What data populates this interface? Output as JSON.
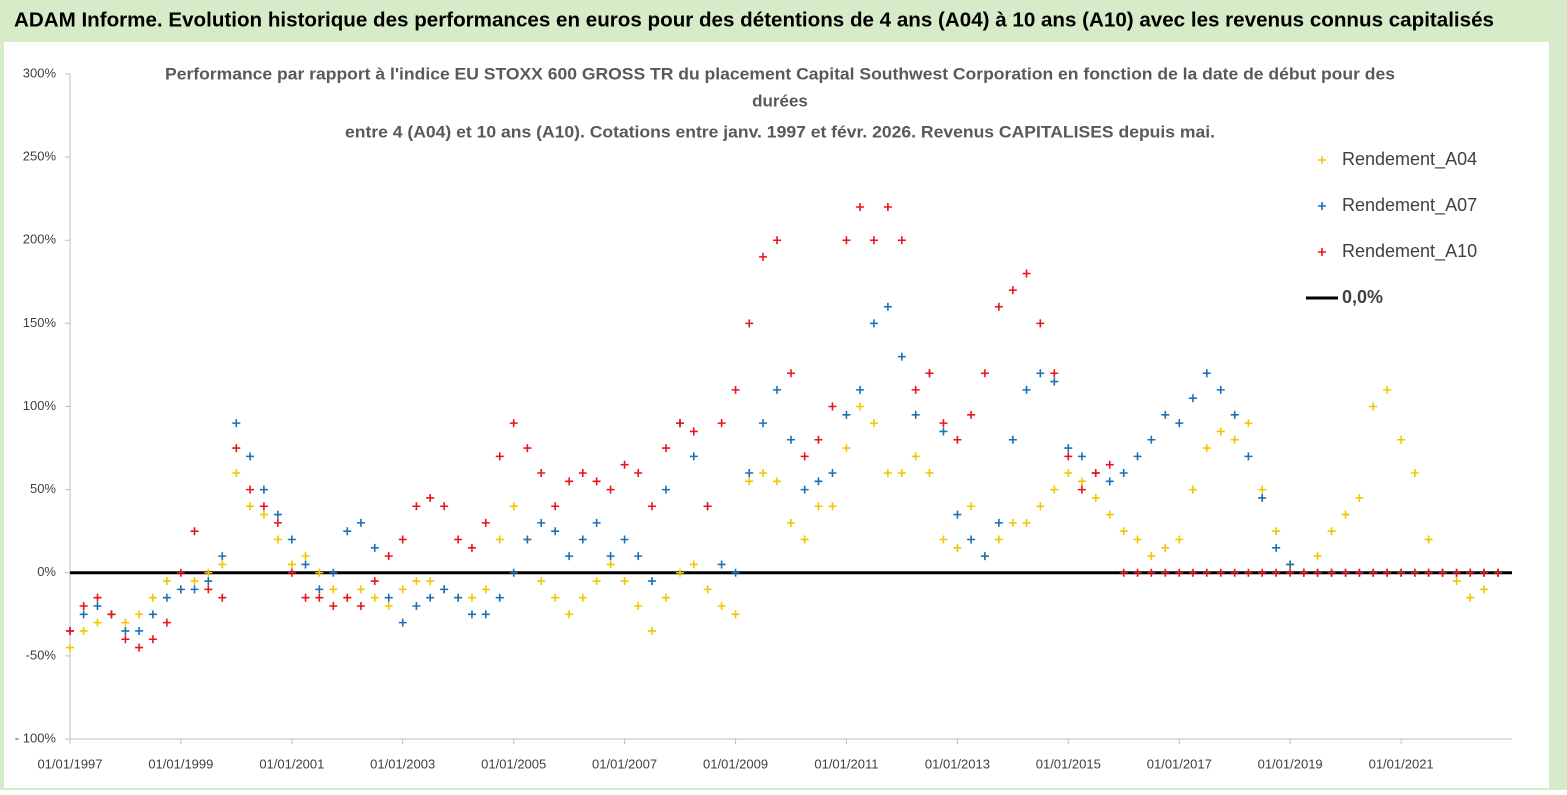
{
  "header": {
    "title": "ADAM Informe. Evolution historique des performances en euros pour des détentions de 4 ans (A04) à 10 ans (A10) avec les revenus connus capitalisés"
  },
  "chart_data": {
    "type": "scatter",
    "title_lines": [
      "Performance par rapport à l'indice EU STOXX 600 GROSS TR  du placement Capital Southwest Corporation en fonction de la date de début pour des",
      "durées",
      "entre 4 (A04) et 10 ans (A10). Cotations entre janv. 1997 et févr. 2026. Revenus CAPITALISES depuis mai."
    ],
    "x": [
      "1997-01-01",
      "1997-04-01",
      "1997-07-01",
      "1997-10-01",
      "1998-01-01",
      "1998-04-01",
      "1998-07-01",
      "1998-10-01",
      "1999-01-01",
      "1999-04-01",
      "1999-07-01",
      "1999-10-01",
      "2000-01-01",
      "2000-04-01",
      "2000-07-01",
      "2000-10-01",
      "2001-01-01",
      "2001-04-01",
      "2001-07-01",
      "2001-10-01",
      "2002-01-01",
      "2002-04-01",
      "2002-07-01",
      "2002-10-01",
      "2003-01-01",
      "2003-04-01",
      "2003-07-01",
      "2003-10-01",
      "2004-01-01",
      "2004-04-01",
      "2004-07-01",
      "2004-10-01",
      "2005-01-01",
      "2005-04-01",
      "2005-07-01",
      "2005-10-01",
      "2006-01-01",
      "2006-04-01",
      "2006-07-01",
      "2006-10-01",
      "2007-01-01",
      "2007-04-01",
      "2007-07-01",
      "2007-10-01",
      "2008-01-01",
      "2008-04-01",
      "2008-07-01",
      "2008-10-01",
      "2009-01-01",
      "2009-04-01",
      "2009-07-01",
      "2009-10-01",
      "2010-01-01",
      "2010-04-01",
      "2010-07-01",
      "2010-10-01",
      "2011-01-01",
      "2011-04-01",
      "2011-07-01",
      "2011-10-01",
      "2012-01-01",
      "2012-04-01",
      "2012-07-01",
      "2012-10-01",
      "2013-01-01",
      "2013-04-01",
      "2013-07-01",
      "2013-10-01",
      "2014-01-01",
      "2014-04-01",
      "2014-07-01",
      "2014-10-01",
      "2015-01-01",
      "2015-04-01",
      "2015-07-01",
      "2015-10-01",
      "2016-01-01",
      "2016-04-01",
      "2016-07-01",
      "2016-10-01",
      "2017-01-01",
      "2017-04-01",
      "2017-07-01",
      "2017-10-01",
      "2018-01-01",
      "2018-04-01",
      "2018-07-01",
      "2018-10-01",
      "2019-01-01",
      "2019-04-01",
      "2019-07-01",
      "2019-10-01",
      "2020-01-01",
      "2020-04-01",
      "2020-07-01",
      "2020-10-01",
      "2021-01-01",
      "2021-04-01",
      "2021-07-01",
      "2021-10-01",
      "2022-01-01",
      "2022-04-01",
      "2022-07-01",
      "2022-10-01"
    ],
    "series": [
      {
        "name": "Rendement_A04",
        "color": "#f5c400",
        "values": [
          -45,
          -35,
          -30,
          -25,
          -30,
          -25,
          -15,
          -5,
          -10,
          -5,
          0,
          5,
          60,
          40,
          35,
          20,
          5,
          10,
          0,
          -10,
          -15,
          -10,
          -15,
          -20,
          -10,
          -5,
          -5,
          -10,
          -15,
          -15,
          -10,
          20,
          40,
          20,
          -5,
          -15,
          -25,
          -15,
          -5,
          5,
          -5,
          -20,
          -35,
          -15,
          0,
          5,
          -10,
          -20,
          -25,
          55,
          60,
          55,
          30,
          20,
          40,
          40,
          75,
          100,
          90,
          60,
          60,
          70,
          60,
          20,
          15,
          40,
          10,
          20,
          30,
          30,
          40,
          50,
          60,
          55,
          45,
          35,
          25,
          20,
          10,
          15,
          20,
          50,
          75,
          85,
          80,
          90,
          50,
          25,
          5,
          0,
          10,
          25,
          35,
          45,
          100,
          110,
          80,
          60,
          20,
          0,
          -5,
          -15,
          -10,
          0
        ]
      },
      {
        "name": "Rendement_A07",
        "color": "#1a70b8",
        "values": [
          -35,
          -25,
          -20,
          -25,
          -35,
          -35,
          -25,
          -15,
          -10,
          -10,
          -5,
          10,
          90,
          70,
          50,
          35,
          20,
          5,
          -10,
          0,
          25,
          30,
          15,
          -15,
          -30,
          -20,
          -15,
          -10,
          -15,
          -25,
          -25,
          -15,
          0,
          20,
          30,
          25,
          10,
          20,
          30,
          10,
          20,
          10,
          -5,
          50,
          90,
          70,
          40,
          5,
          0,
          60,
          90,
          110,
          80,
          50,
          55,
          60,
          95,
          110,
          150,
          160,
          130,
          95,
          120,
          85,
          35,
          20,
          10,
          30,
          80,
          110,
          120,
          115,
          75,
          70,
          60,
          55,
          60,
          70,
          80,
          95,
          90,
          105,
          120,
          110,
          95,
          70,
          45,
          15,
          5,
          0,
          0,
          0,
          0,
          0,
          0,
          0,
          0,
          0,
          0,
          0,
          0,
          0,
          0,
          0
        ]
      },
      {
        "name": "Rendement_A10",
        "color": "#e8141c",
        "values": [
          -35,
          -20,
          -15,
          -25,
          -40,
          -45,
          -40,
          -30,
          0,
          25,
          -10,
          -15,
          75,
          50,
          40,
          30,
          0,
          -15,
          -15,
          -20,
          -15,
          -20,
          -5,
          10,
          20,
          40,
          45,
          40,
          20,
          15,
          30,
          70,
          90,
          75,
          60,
          40,
          55,
          60,
          55,
          50,
          65,
          60,
          40,
          75,
          90,
          85,
          40,
          90,
          110,
          150,
          190,
          200,
          120,
          70,
          80,
          100,
          200,
          220,
          200,
          220,
          200,
          110,
          120,
          90,
          80,
          95,
          120,
          160,
          170,
          180,
          150,
          120,
          70,
          50,
          60,
          65,
          0,
          0,
          0,
          0,
          0,
          0,
          0,
          0,
          0,
          0,
          0,
          0,
          0,
          0,
          0,
          0,
          0,
          0,
          0,
          0,
          0,
          0,
          0,
          0,
          0,
          0,
          0,
          0
        ]
      }
    ],
    "reference_line": {
      "name": "0,0%",
      "value": 0,
      "color": "#000000"
    },
    "xlim": [
      "1997-01-01",
      "2023-01-01"
    ],
    "xticks": [
      {
        "value": "1997-01-01",
        "label": "01/01/1997"
      },
      {
        "value": "1999-01-01",
        "label": "01/01/1999"
      },
      {
        "value": "2001-01-01",
        "label": "01/01/2001"
      },
      {
        "value": "2003-01-01",
        "label": "01/01/2003"
      },
      {
        "value": "2005-01-01",
        "label": "01/01/2005"
      },
      {
        "value": "2007-01-01",
        "label": "01/01/2007"
      },
      {
        "value": "2009-01-01",
        "label": "01/01/2009"
      },
      {
        "value": "2011-01-01",
        "label": "01/01/2011"
      },
      {
        "value": "2013-01-01",
        "label": "01/01/2013"
      },
      {
        "value": "2015-01-01",
        "label": "01/01/2015"
      },
      {
        "value": "2017-01-01",
        "label": "01/01/2017"
      },
      {
        "value": "2019-01-01",
        "label": "01/01/2019"
      },
      {
        "value": "2021-01-01",
        "label": "01/01/2021"
      }
    ],
    "ylim": [
      -100,
      300
    ],
    "yticks": [
      {
        "value": -100,
        "label": "- 100%"
      },
      {
        "value": -50,
        "label": "-50%"
      },
      {
        "value": 0,
        "label": "0%"
      },
      {
        "value": 50,
        "label": "50%"
      },
      {
        "value": 100,
        "label": "100%"
      },
      {
        "value": 150,
        "label": "150%"
      },
      {
        "value": 200,
        "label": "200%"
      },
      {
        "value": 250,
        "label": "250%"
      },
      {
        "value": 300,
        "label": "300%"
      }
    ],
    "legend": "upper right"
  }
}
